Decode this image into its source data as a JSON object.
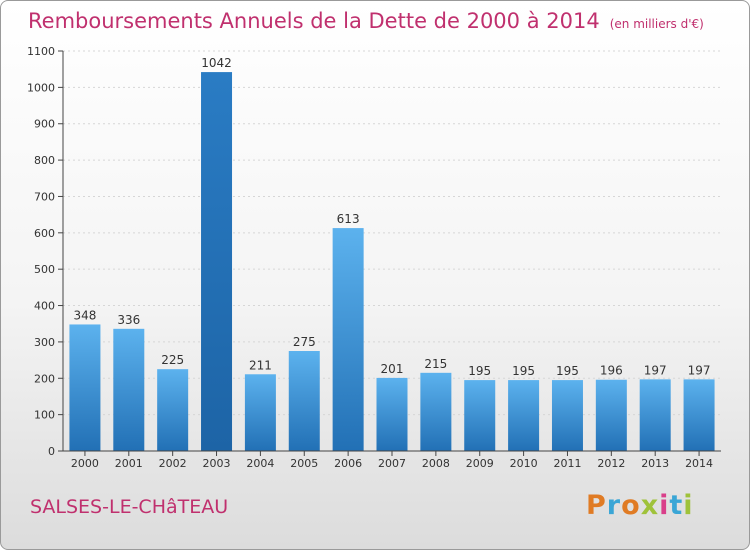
{
  "header": {
    "title": "Remboursements Annuels de la Dette de 2000 à 2014",
    "unit": "(en milliers d'€)"
  },
  "footer": {
    "city": "SALSES-LE-CHâTEAU",
    "logo": [
      "P",
      "r",
      "o",
      "x",
      "i",
      "t",
      "i"
    ],
    "logo_colors": [
      "#e07b24",
      "#3aa6d6",
      "#e07b24",
      "#9fc23a",
      "#d93f8a",
      "#3aa6d6",
      "#9fc23a"
    ]
  },
  "colors": {
    "bar_top": "#5aafea",
    "bar_bottom": "#2474b8",
    "text": "#c0306e"
  },
  "chart_data": {
    "type": "bar",
    "categories": [
      "2000",
      "2001",
      "2002",
      "2003",
      "2004",
      "2005",
      "2006",
      "2007",
      "2008",
      "2009",
      "2010",
      "2011",
      "2012",
      "2013",
      "2014"
    ],
    "values": [
      348,
      336,
      225,
      1042,
      211,
      275,
      613,
      201,
      215,
      195,
      195,
      195,
      196,
      197,
      197
    ],
    "ylim": [
      0,
      1100
    ],
    "yticks": [
      0,
      100,
      200,
      300,
      400,
      500,
      600,
      700,
      800,
      900,
      1000,
      1100
    ],
    "grid": true
  }
}
